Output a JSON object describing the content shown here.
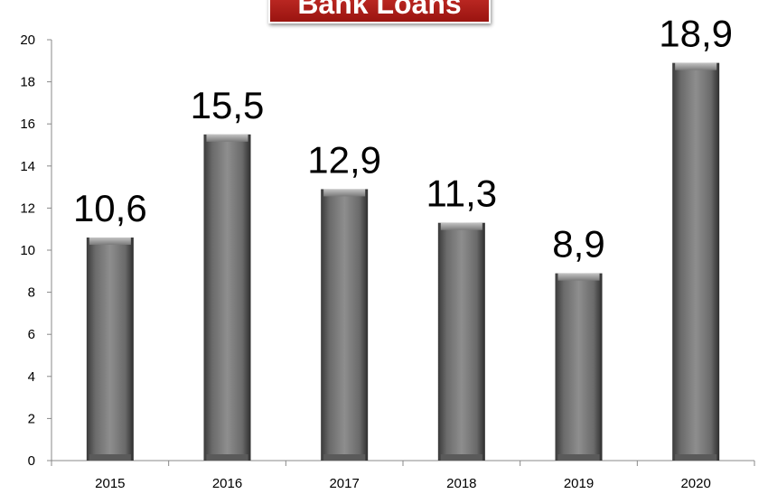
{
  "chart_data": {
    "type": "bar",
    "title": "Bank Loans",
    "categories": [
      "2015",
      "2016",
      "2017",
      "2018",
      "2019",
      "2020"
    ],
    "values": [
      10.6,
      15.5,
      12.9,
      11.3,
      8.9,
      18.9
    ],
    "value_labels": [
      "10,6",
      "15,5",
      "12,9",
      "11,3",
      "8,9",
      "18,9"
    ],
    "y_ticks": [
      "0",
      "2",
      "4",
      "6",
      "8",
      "10",
      "12",
      "14",
      "16",
      "18",
      "20"
    ],
    "ylim": [
      0,
      20
    ],
    "xlabel": "",
    "ylabel": "",
    "grid": false,
    "legend": "none",
    "colors": {
      "bar": "#7a7a7a",
      "bar_dark": "#3a3a3a",
      "bar_light": "#b0b0b0",
      "title_bg": "#b3201b"
    }
  }
}
